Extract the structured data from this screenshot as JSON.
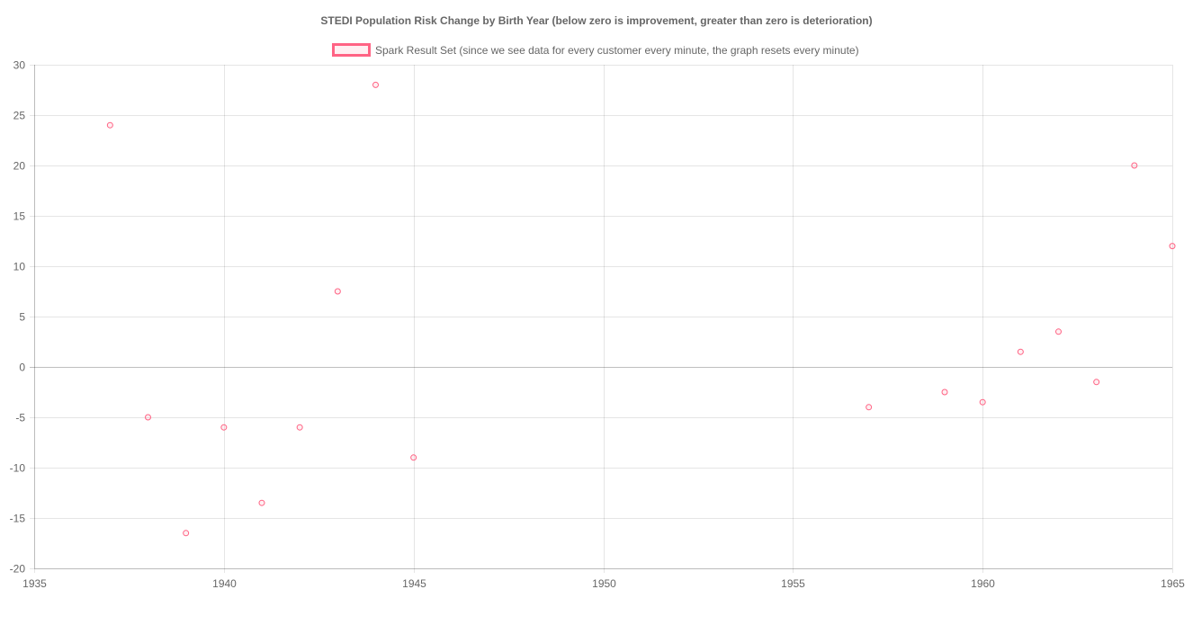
{
  "chart_data": {
    "type": "scatter",
    "title": "STEDI Population Risk Change by Birth Year (below zero is improvement, greater than zero is deterioration)",
    "xlabel": "",
    "ylabel": "",
    "xlim": [
      1935,
      1965
    ],
    "ylim": [
      -20,
      30
    ],
    "x_ticks": [
      "1935",
      "1940",
      "1945",
      "1950",
      "1955",
      "1960",
      "1965"
    ],
    "y_ticks": [
      "30",
      "25",
      "20",
      "15",
      "10",
      "5",
      "0",
      "-5",
      "-10",
      "-15",
      "-20"
    ],
    "grid": true,
    "legend_position": "top",
    "series": [
      {
        "name": "Spark Result Set (since we see data for every customer every minute, the graph resets every minute)",
        "color": "#ff6384",
        "points": [
          {
            "x": 1937,
            "y": 24
          },
          {
            "x": 1938,
            "y": -5
          },
          {
            "x": 1939,
            "y": -16.5
          },
          {
            "x": 1940,
            "y": -6
          },
          {
            "x": 1941,
            "y": -13.5
          },
          {
            "x": 1942,
            "y": -6
          },
          {
            "x": 1943,
            "y": 7.5
          },
          {
            "x": 1944,
            "y": 28
          },
          {
            "x": 1945,
            "y": -9
          },
          {
            "x": 1957,
            "y": -4
          },
          {
            "x": 1959,
            "y": -2.5
          },
          {
            "x": 1960,
            "y": -3.5
          },
          {
            "x": 1961,
            "y": 1.5
          },
          {
            "x": 1962,
            "y": 3.5
          },
          {
            "x": 1963,
            "y": -1.5
          },
          {
            "x": 1964,
            "y": 20
          },
          {
            "x": 1965,
            "y": 12
          }
        ]
      }
    ]
  }
}
